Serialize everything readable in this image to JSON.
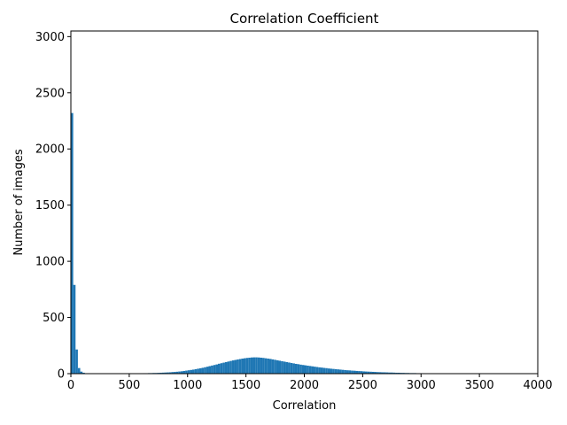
{
  "colors": {
    "bar": "#1f77b4",
    "axis": "#000000",
    "background": "#ffffff"
  },
  "chart_data": {
    "type": "bar",
    "title": "Correlation Coefficient",
    "xlabel": "Correlation",
    "ylabel": "Number of images",
    "xlim": [
      0,
      4000
    ],
    "ylim": [
      0,
      3050
    ],
    "grid": false,
    "xticks": [
      0,
      500,
      1000,
      1500,
      2000,
      2500,
      3000,
      3500,
      4000
    ],
    "yticks": [
      0,
      500,
      1000,
      1500,
      2000,
      2500,
      3000
    ],
    "bin_width": 20,
    "bin_start": 0,
    "values": [
      2320,
      790,
      215,
      50,
      18,
      8,
      3,
      2,
      1,
      1,
      1,
      1,
      1,
      1,
      1,
      1,
      1,
      1,
      1,
      1,
      1,
      1,
      1,
      1,
      2,
      2,
      2,
      2,
      3,
      3,
      3,
      4,
      4,
      5,
      5,
      6,
      6,
      7,
      8,
      9,
      10,
      11,
      12,
      14,
      15,
      17,
      19,
      21,
      24,
      27,
      30,
      33,
      36,
      40,
      44,
      48,
      52,
      57,
      62,
      67,
      72,
      77,
      82,
      88,
      93,
      98,
      103,
      108,
      113,
      118,
      122,
      126,
      130,
      134,
      137,
      140,
      142,
      144,
      145,
      145,
      144,
      142,
      140,
      137,
      134,
      131,
      127,
      123,
      119,
      115,
      111,
      107,
      103,
      99,
      95,
      91,
      87,
      84,
      80,
      77,
      74,
      71,
      68,
      65,
      62,
      59,
      56,
      54,
      51,
      49,
      46,
      44,
      42,
      40,
      38,
      36,
      34,
      32,
      30,
      29,
      27,
      26,
      24,
      23,
      22,
      20,
      19,
      18,
      17,
      16,
      15,
      14,
      13,
      12,
      12,
      11,
      10,
      10,
      9,
      8,
      8,
      7,
      7,
      6,
      6,
      5,
      5,
      5,
      4,
      4,
      4,
      3,
      3,
      3,
      3,
      2,
      2,
      2,
      2,
      2,
      2,
      1,
      1,
      1,
      1,
      1,
      1,
      1,
      1,
      1,
      1,
      1,
      1,
      1,
      1,
      1,
      1,
      1,
      1,
      1,
      1,
      1,
      1,
      1,
      1,
      1,
      1,
      1,
      1,
      1,
      1,
      1,
      1,
      1,
      1,
      1,
      1,
      1,
      1,
      1
    ]
  }
}
